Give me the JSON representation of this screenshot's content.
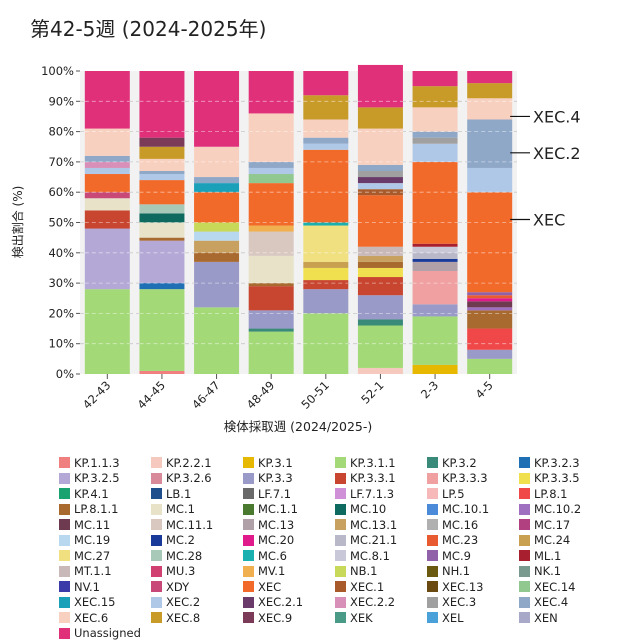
{
  "chart_data": {
    "type": "bar",
    "stacked": true,
    "title": "第42-5週 (2024-2025年)",
    "xlabel": "検体採取週 (2024/2025-)",
    "ylabel": "検出割合 (%)",
    "ylim": [
      0,
      100
    ],
    "ytick_labels": [
      "0%",
      "10%",
      "20%",
      "30%",
      "40%",
      "50%",
      "60%",
      "70%",
      "80%",
      "90%",
      "100%"
    ],
    "categories": [
      "42-43",
      "44-45",
      "46-47",
      "48-49",
      "50-51",
      "52-1",
      "2-3",
      "4-5"
    ],
    "grid": true,
    "legend_position": "bottom",
    "callouts": [
      {
        "label": "XEC.4",
        "category": "4-5",
        "value": 85
      },
      {
        "label": "XEC.2",
        "category": "4-5",
        "value": 73
      },
      {
        "label": "XEC",
        "category": "4-5",
        "value": 51
      }
    ],
    "lineages": [
      "KP.1.1.3",
      "KP.2.2.1",
      "KP.3.1",
      "KP.3.1.1",
      "KP.3.2",
      "KP.3.2.3",
      "KP.3.2.5",
      "KP.3.2.6",
      "KP.3.3",
      "KP.3.3.1",
      "KP.3.3.3",
      "KP.3.3.5",
      "KP.4.1",
      "LB.1",
      "LF.7.1",
      "LF.7.1.3",
      "LP.5",
      "LP.8.1",
      "LP.8.1.1",
      "MC.1",
      "MC.1.1",
      "MC.10",
      "MC.10.1",
      "MC.10.2",
      "MC.11",
      "MC.11.1",
      "MC.13",
      "MC.13.1",
      "MC.16",
      "MC.17",
      "MC.19",
      "MC.2",
      "MC.20",
      "MC.21.1",
      "MC.23",
      "MC.24",
      "MC.27",
      "MC.28",
      "MC.6",
      "MC.8.1",
      "MC.9",
      "ML.1",
      "MT.1.1",
      "MU.3",
      "MV.1",
      "NB.1",
      "NH.1",
      "NK.1",
      "NV.1",
      "XDY",
      "XEC",
      "XEC.1",
      "XEC.13",
      "XEC.14",
      "XEC.15",
      "XEC.2",
      "XEC.2.1",
      "XEC.2.2",
      "XEC.3",
      "XEC.4",
      "XEC.6",
      "XEC.8",
      "XEC.9",
      "XEK",
      "XEL",
      "XEN",
      "Unassigned"
    ],
    "colors": [
      "#f08080",
      "#f5c9bd",
      "#e6b800",
      "#a3d977",
      "#3a8a7a",
      "#1f6fb5",
      "#b3a8d6",
      "#d88a9a",
      "#9a9ac8",
      "#c8452f",
      "#f0a0a0",
      "#f0e050",
      "#1aa370",
      "#1e4f8c",
      "#6a6a6a",
      "#d090d8",
      "#f6b8b8",
      "#f04848",
      "#a86a2e",
      "#e8e2c8",
      "#4a7a30",
      "#0e6a5e",
      "#4a8ad8",
      "#a070c0",
      "#6e3a50",
      "#d8c8c0",
      "#b0a0a8",
      "#c8a060",
      "#b0b0b0",
      "#b04080",
      "#b8d8f0",
      "#1a3a9a",
      "#e01a8a",
      "#b8b8c8",
      "#e85a30",
      "#c8a050",
      "#f0e080",
      "#a8c8b8",
      "#1ab0b0",
      "#c8c8d8",
      "#9060a8",
      "#a82030",
      "#c8b8b8",
      "#d04070",
      "#f0b050",
      "#c8d858",
      "#6a5a10",
      "#7a9a90",
      "#3a3aa8",
      "#c84878",
      "#f26a2a",
      "#a85a2a",
      "#6a4a10",
      "#90c890",
      "#1aa0b8",
      "#b0c8e8",
      "#6a3a6a",
      "#d890b8",
      "#a0a0a0",
      "#90a8c8",
      "#f8d0c0",
      "#c89a28",
      "#7a3a58",
      "#4a9a88",
      "#4aa0d8",
      "#a8a8c8",
      "#e0307a"
    ],
    "series": [
      {
        "name": "KP.1.1.3",
        "values": [
          0,
          1,
          0,
          0,
          0,
          0,
          0,
          0
        ]
      },
      {
        "name": "KP.2.2.1",
        "values": [
          0,
          0,
          0,
          0,
          0,
          2,
          0,
          0
        ]
      },
      {
        "name": "KP.3.1",
        "values": [
          0,
          0,
          0,
          0,
          0,
          0,
          3,
          0
        ]
      },
      {
        "name": "KP.3.1.1",
        "values": [
          28,
          27,
          22,
          14,
          20,
          14,
          16,
          5
        ]
      },
      {
        "name": "KP.3.2",
        "values": [
          0,
          0,
          0,
          1,
          0,
          2,
          0,
          0
        ]
      },
      {
        "name": "KP.3.2.3",
        "values": [
          0,
          2,
          0,
          0,
          0,
          0,
          0,
          0
        ]
      },
      {
        "name": "KP.3.2.5",
        "values": [
          20,
          14,
          0,
          0,
          0,
          0,
          0,
          0
        ]
      },
      {
        "name": "KP.3.3",
        "values": [
          0,
          0,
          15,
          6,
          8,
          8,
          4,
          3
        ]
      },
      {
        "name": "KP.3.3.1",
        "values": [
          6,
          0,
          0,
          8,
          3,
          6,
          0,
          0
        ]
      },
      {
        "name": "KP.3.3.3",
        "values": [
          0,
          0,
          0,
          0,
          0,
          0,
          11,
          0
        ]
      },
      {
        "name": "KP.3.3.5",
        "values": [
          0,
          0,
          0,
          0,
          4,
          3,
          0,
          0
        ]
      },
      {
        "name": "LP.8.1",
        "values": [
          0,
          0,
          0,
          0,
          0,
          0,
          0,
          7
        ]
      },
      {
        "name": "LP.8.1.1",
        "values": [
          0,
          1,
          3,
          1,
          0,
          2,
          0,
          6
        ]
      },
      {
        "name": "MC.1",
        "values": [
          4,
          5,
          0,
          9,
          0,
          0,
          0,
          0
        ]
      },
      {
        "name": "MC.10",
        "values": [
          0,
          3,
          0,
          0,
          0,
          0,
          0,
          0
        ]
      },
      {
        "name": "MC.10.2",
        "values": [
          0,
          0,
          0,
          0,
          0,
          0,
          0,
          1
        ]
      },
      {
        "name": "MC.11",
        "values": [
          0,
          0,
          0,
          0,
          0,
          0,
          0,
          2
        ]
      },
      {
        "name": "MC.11.1",
        "values": [
          0,
          0,
          0,
          8,
          0,
          0,
          0,
          0
        ]
      },
      {
        "name": "MC.13",
        "values": [
          0,
          0,
          0,
          0,
          0,
          0,
          3,
          0
        ]
      },
      {
        "name": "MC.13.1",
        "values": [
          0,
          0,
          4,
          0,
          0,
          2,
          0,
          0
        ]
      },
      {
        "name": "MC.19",
        "values": [
          0,
          0,
          3,
          0,
          0,
          0,
          0,
          0
        ]
      },
      {
        "name": "MC.2",
        "values": [
          0,
          0,
          0,
          0,
          0,
          0,
          1,
          0
        ]
      },
      {
        "name": "MC.20",
        "values": [
          0,
          0,
          0,
          0,
          0,
          0,
          0,
          1
        ]
      },
      {
        "name": "MC.21.1",
        "values": [
          0,
          0,
          0,
          0,
          0,
          0,
          2,
          0
        ]
      },
      {
        "name": "MC.23",
        "values": [
          0,
          0,
          0,
          0,
          0,
          0,
          0,
          1
        ]
      },
      {
        "name": "MC.24",
        "values": [
          0,
          0,
          0,
          0,
          2,
          0,
          0,
          0
        ]
      },
      {
        "name": "MC.27",
        "values": [
          0,
          0,
          0,
          0,
          12,
          0,
          0,
          0
        ]
      },
      {
        "name": "MC.28",
        "values": [
          0,
          3,
          0,
          0,
          0,
          0,
          0,
          0
        ]
      },
      {
        "name": "MC.6",
        "values": [
          0,
          0,
          0,
          0,
          1,
          0,
          0,
          0
        ]
      },
      {
        "name": "MC.8.1",
        "values": [
          0,
          0,
          0,
          0,
          0,
          0,
          2,
          0
        ]
      },
      {
        "name": "MC.9",
        "values": [
          0,
          0,
          0,
          0,
          0,
          0,
          0,
          1
        ]
      },
      {
        "name": "ML.1",
        "values": [
          0,
          0,
          0,
          0,
          0,
          0,
          1,
          0
        ]
      },
      {
        "name": "MT.1.1",
        "values": [
          0,
          0,
          0,
          0,
          0,
          3,
          0,
          0
        ]
      },
      {
        "name": "MV.1",
        "values": [
          0,
          0,
          0,
          2,
          0,
          0,
          0,
          0
        ]
      },
      {
        "name": "NB.1",
        "values": [
          0,
          0,
          3,
          0,
          0,
          0,
          0,
          0
        ]
      },
      {
        "name": "XDY",
        "values": [
          2,
          0,
          0,
          0,
          0,
          0,
          0,
          0
        ]
      },
      {
        "name": "XEC",
        "values": [
          6,
          8,
          10,
          14,
          24,
          17,
          27,
          33
        ]
      },
      {
        "name": "XEC.1",
        "values": [
          0,
          0,
          0,
          0,
          0,
          2,
          0,
          0
        ]
      },
      {
        "name": "XEC.14",
        "values": [
          0,
          0,
          0,
          3,
          0,
          0,
          0,
          0
        ]
      },
      {
        "name": "XEC.15",
        "values": [
          0,
          0,
          3,
          0,
          0,
          0,
          0,
          0
        ]
      },
      {
        "name": "XEC.2",
        "values": [
          2,
          2,
          0,
          2,
          2,
          2,
          6,
          8
        ]
      },
      {
        "name": "XEC.2.1",
        "values": [
          0,
          0,
          0,
          0,
          0,
          2,
          0,
          0
        ]
      },
      {
        "name": "XEC.2.2",
        "values": [
          2,
          0,
          0,
          0,
          0,
          0,
          0,
          0
        ]
      },
      {
        "name": "XEC.3",
        "values": [
          0,
          0,
          0,
          0,
          0,
          2,
          2,
          0
        ]
      },
      {
        "name": "XEC.4",
        "values": [
          2,
          1,
          2,
          2,
          2,
          2,
          2,
          16
        ]
      },
      {
        "name": "XEC.6",
        "values": [
          9,
          4,
          10,
          16,
          6,
          12,
          8,
          7
        ]
      },
      {
        "name": "XEC.8",
        "values": [
          0,
          4,
          0,
          0,
          8,
          7,
          7,
          5
        ]
      },
      {
        "name": "XEC.9",
        "values": [
          0,
          3,
          0,
          0,
          0,
          0,
          0,
          0
        ]
      },
      {
        "name": "Unassigned",
        "values": [
          19,
          22,
          25,
          14,
          8,
          14,
          5,
          4
        ]
      }
    ]
  }
}
